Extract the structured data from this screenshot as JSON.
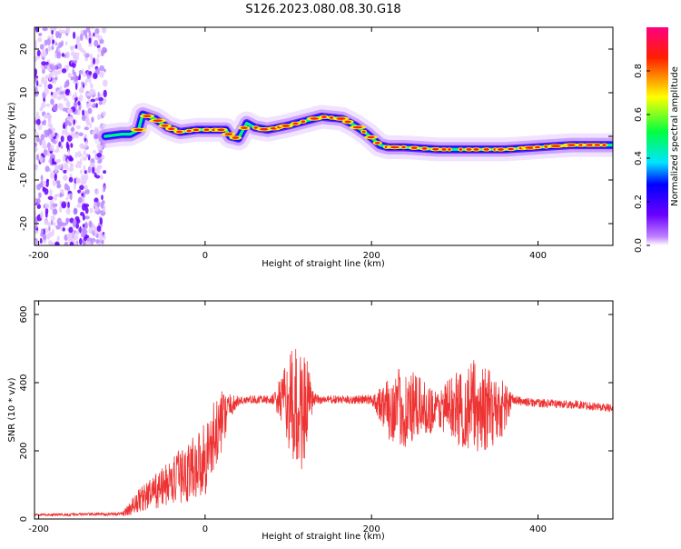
{
  "title": "S126.2023.080.08.30.G18",
  "colors": {
    "snr_line": "#ee3333",
    "frame": "#000000",
    "background": "#ffffff",
    "colormap": [
      "#ffffff",
      "#c080ff",
      "#6a00ff",
      "#0000ff",
      "#00e5ff",
      "#00ff40",
      "#ffff00",
      "#ff2000",
      "#ff0080"
    ]
  },
  "chart_data": [
    {
      "type": "heatmap",
      "xlabel": "Height of straight line (km)",
      "ylabel": "Frequency (Hz)",
      "xlim": [
        -205,
        490
      ],
      "ylim": [
        -25,
        25
      ],
      "xticks": [
        -200,
        0,
        200,
        400
      ],
      "yticks": [
        -20,
        -10,
        0,
        10,
        20
      ],
      "grid": false,
      "colorbar": {
        "label": "Normalized spectral amplitude",
        "range": [
          0,
          1
        ],
        "ticks": [
          0.0,
          0.2,
          0.4,
          0.6,
          0.8
        ]
      },
      "noise_region": [
        -205,
        -120
      ],
      "ridge": {
        "x": [
          -120,
          -100,
          -90,
          -80,
          -75,
          -60,
          -45,
          -30,
          -10,
          0,
          25,
          30,
          40,
          50,
          60,
          75,
          100,
          120,
          140,
          165,
          180,
          195,
          210,
          220,
          240,
          280,
          300,
          320,
          360,
          400,
          440,
          490
        ],
        "y": [
          0,
          0.5,
          0.5,
          1.5,
          5,
          4,
          2,
          1,
          1.5,
          1.5,
          1.5,
          0,
          -0.5,
          3,
          2,
          1.5,
          2.5,
          3.5,
          4.5,
          4,
          2.5,
          0.5,
          -2,
          -2.5,
          -2.5,
          -3,
          -3,
          -3,
          -3,
          -2.5,
          -2,
          -2
        ]
      }
    },
    {
      "type": "line",
      "xlabel": "Height of straight line (km)",
      "ylabel": "SNR (10 * v/v)",
      "xlim": [
        -205,
        490
      ],
      "ylim": [
        0,
        640
      ],
      "xticks": [
        -200,
        0,
        200,
        400
      ],
      "yticks": [
        0,
        200,
        400,
        600
      ],
      "grid": false,
      "series": [
        {
          "envelope": {
            "x": [
              -205,
              -100,
              -90,
              -80,
              -60,
              -40,
              -20,
              0,
              10,
              20,
              30,
              40,
              50,
              60,
              80,
              90,
              100,
              105,
              110,
              115,
              120,
              125,
              130,
              140,
              160,
              180,
              200,
              210,
              220,
              230,
              240,
              250,
              260,
              270,
              280,
              290,
              300,
              310,
              320,
              330,
              340,
              350,
              360,
              370,
              380,
              400,
              450,
              490
            ],
            "mean": [
              12,
              15,
              30,
              55,
              80,
              110,
              140,
              180,
              230,
              290,
              330,
              345,
              350,
              350,
              350,
              350,
              340,
              320,
              310,
              320,
              330,
              340,
              350,
              350,
              350,
              350,
              350,
              340,
              320,
              330,
              320,
              320,
              330,
              320,
              320,
              330,
              330,
              320,
              330,
              330,
              320,
              320,
              330,
              350,
              345,
              340,
              335,
              325
            ],
            "spread": [
              4,
              5,
              20,
              35,
              50,
              70,
              90,
              110,
              110,
              90,
              35,
              15,
              12,
              12,
              12,
              60,
              130,
              180,
              200,
              190,
              160,
              100,
              20,
              12,
              12,
              12,
              15,
              50,
              90,
              110,
              120,
              110,
              80,
              70,
              60,
              80,
              100,
              120,
              140,
              140,
              120,
              100,
              80,
              15,
              12,
              12,
              12,
              12
            ]
          }
        }
      ]
    }
  ]
}
